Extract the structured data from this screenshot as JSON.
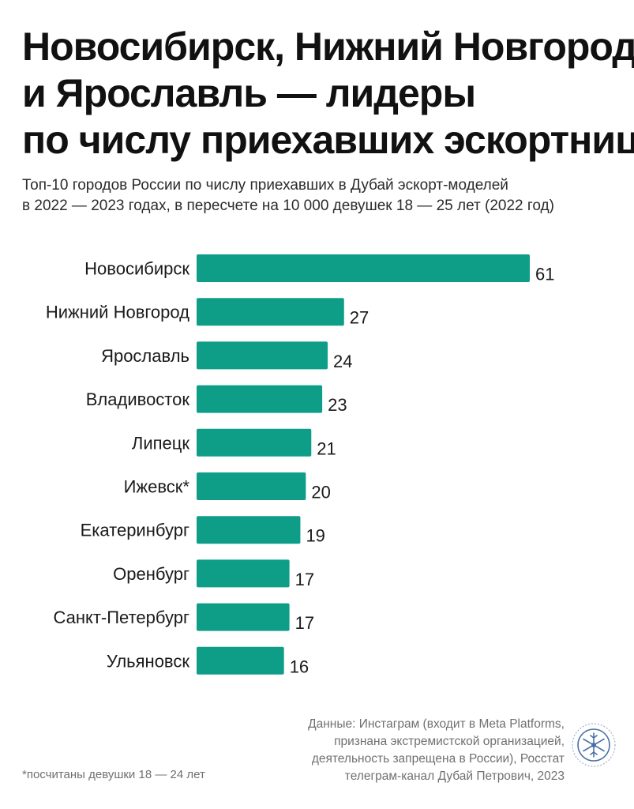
{
  "title_lines": [
    "Новосибирск, Нижний Новгород",
    "и Ярославль — лидеры",
    "по числу приехавших эскортниц"
  ],
  "subtitle_lines": [
    "Топ-10 городов России по числу приехавших в Дубай эскорт-моделей",
    "в 2022 — 2023 годах, в пересчете на 10 000 девушек 18 — 25 лет (2022 год)"
  ],
  "chart_data": {
    "type": "bar",
    "orientation": "horizontal",
    "title": "Новосибирск, Нижний Новгород и Ярославль — лидеры по числу приехавших эскортниц",
    "categories": [
      "Новосибирск",
      "Нижний Новгород",
      "Ярославль",
      "Владивосток",
      "Липецк",
      "Ижевск*",
      "Екатеринбург",
      "Оренбург",
      "Санкт-Петербург",
      "Ульяновск"
    ],
    "values": [
      61,
      27,
      24,
      23,
      21,
      20,
      19,
      17,
      17,
      16
    ],
    "xlim": [
      0,
      61
    ],
    "grid": false,
    "legend": "none",
    "bar_color": "#0e9e88",
    "data_labels": true
  },
  "footnote": "*посчитаны девушки 18 — 24 лет",
  "source_lines": [
    "Данные: Инстаграм (входит в Meta Platforms,",
    "признана экстремистской организацией,",
    "деятельность запрещена в России), Росстат",
    "телеграм-канал Дубай Петрович, 2023"
  ],
  "logo_icon": "snowflake-emblem-icon"
}
